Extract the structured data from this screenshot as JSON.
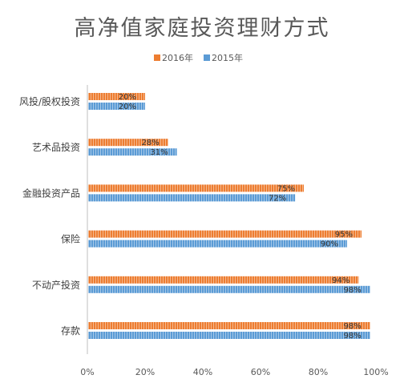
{
  "chart_data": {
    "type": "bar",
    "orientation": "horizontal",
    "title": "高净值家庭投资理财方式",
    "categories": [
      "风投/股权投资",
      "艺术品投资",
      "金融投资产品",
      "保险",
      "不动产投资",
      "存款"
    ],
    "series": [
      {
        "name": "2016年",
        "values": [
          20,
          28,
          75,
          95,
          94,
          98
        ],
        "labels": [
          "20%",
          "28%",
          "75%",
          "95%",
          "94%",
          "98%"
        ]
      },
      {
        "name": "2015年",
        "values": [
          20,
          31,
          72,
          90,
          98,
          98
        ],
        "labels": [
          "20%",
          "31%",
          "72%",
          "90%",
          "98%",
          "98%"
        ]
      }
    ],
    "xlim": [
      0,
      100
    ],
    "xticks": [
      0,
      20,
      40,
      60,
      80,
      100
    ],
    "xtick_labels": [
      "0%",
      "20%",
      "40%",
      "60%",
      "80%",
      "100%"
    ],
    "legend_position": "top",
    "grid": false,
    "colors": {
      "2016年": "#ED7D31",
      "2015年": "#5B9BD5"
    }
  }
}
